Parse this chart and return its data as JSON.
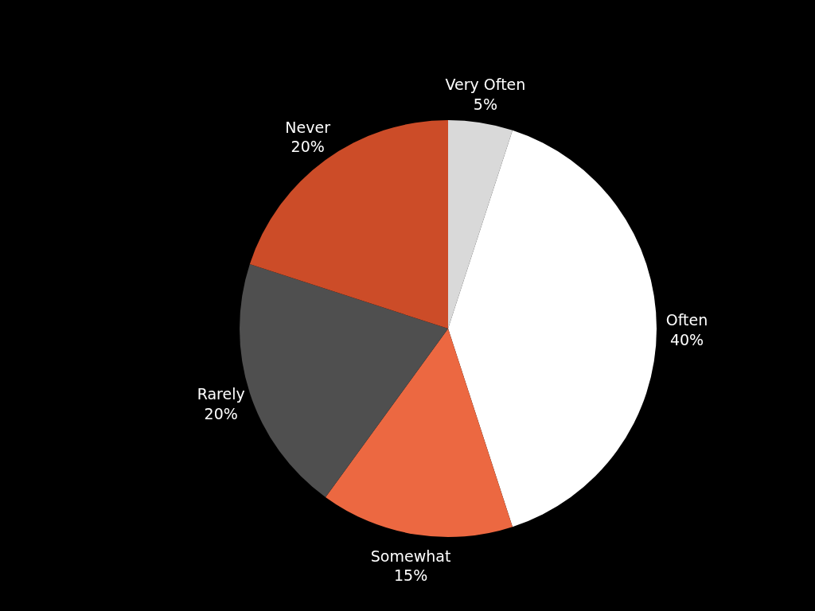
{
  "chart_data": {
    "type": "pie",
    "categories": [
      "Very Often",
      "Often",
      "Somewhat",
      "Rarely",
      "Never"
    ],
    "values": [
      5,
      40,
      15,
      20,
      20
    ],
    "colors": [
      "#d9d9d9",
      "#ffffff",
      "#ec6841",
      "#4f4f4f",
      "#cc4c28"
    ],
    "value_labels": [
      "5%",
      "40%",
      "15%",
      "20%",
      "20%"
    ]
  }
}
